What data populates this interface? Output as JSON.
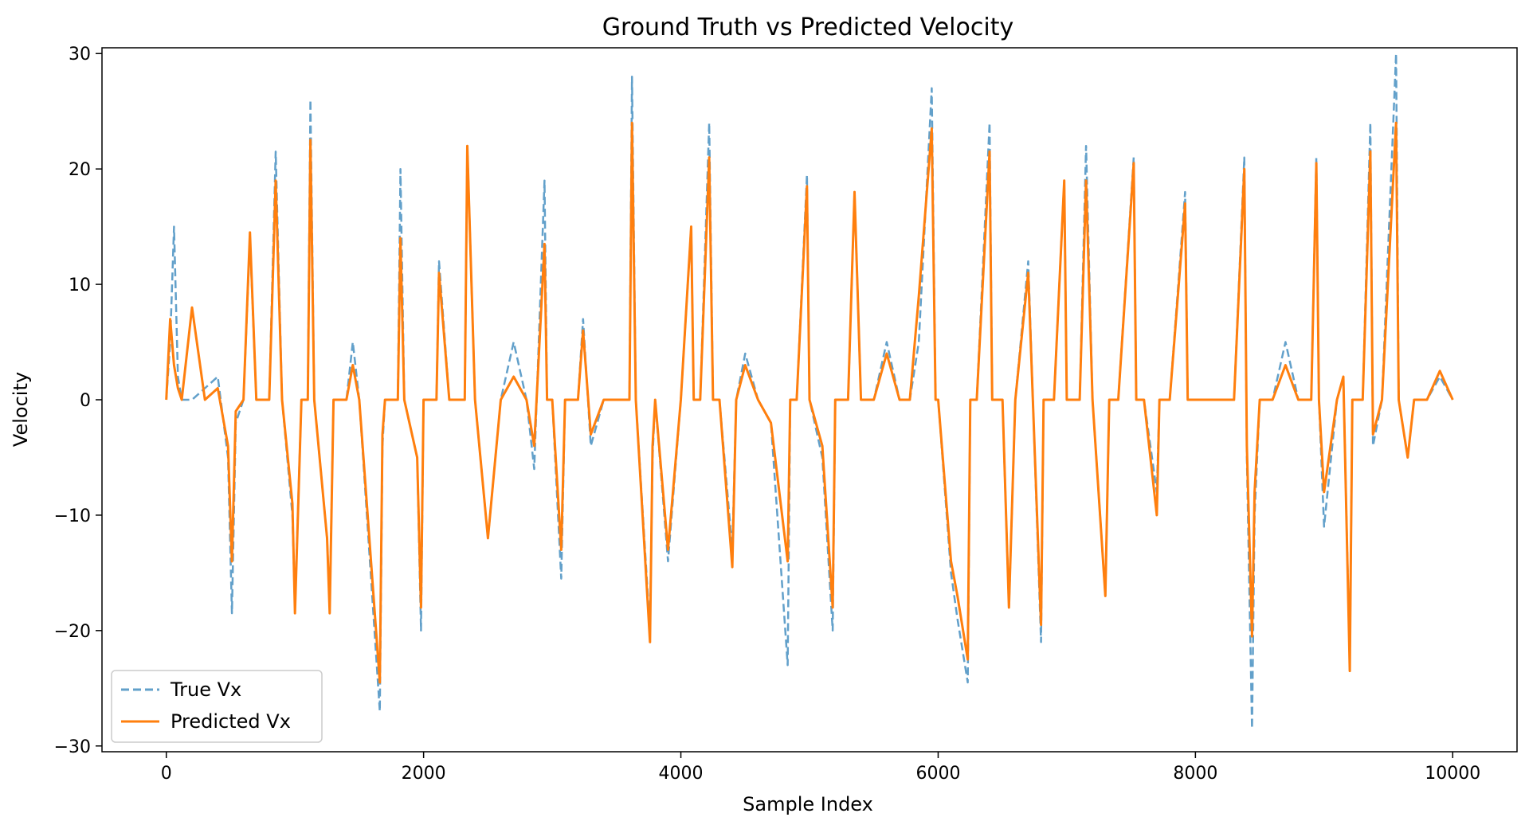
{
  "chart_data": {
    "type": "line",
    "title": "Ground Truth vs Predicted Velocity",
    "xlabel": "Sample Index",
    "ylabel": "Velocity",
    "xlim": [
      -500,
      10500
    ],
    "ylim": [
      -30.5,
      30.5
    ],
    "x_ticks": [
      0,
      2000,
      4000,
      6000,
      8000,
      10000
    ],
    "y_ticks": [
      -30,
      -20,
      -10,
      0,
      10,
      20,
      30
    ],
    "x_tick_labels": [
      "0",
      "2000",
      "4000",
      "6000",
      "8000",
      "10000"
    ],
    "y_tick_labels": [
      "−30",
      "−20",
      "−10",
      "0",
      "10",
      "20",
      "30"
    ],
    "legend_position": "lower-left",
    "grid": false,
    "series": [
      {
        "name": "True Vx",
        "color": "#1f77b4",
        "style": "dashed",
        "x": [
          0,
          30,
          60,
          90,
          120,
          200,
          300,
          400,
          480,
          510,
          540,
          600,
          650,
          700,
          800,
          850,
          900,
          980,
          1000,
          1050,
          1100,
          1120,
          1150,
          1250,
          1270,
          1300,
          1400,
          1450,
          1500,
          1660,
          1680,
          1700,
          1800,
          1820,
          1850,
          1950,
          1980,
          2000,
          2100,
          2120,
          2200,
          2320,
          2340,
          2400,
          2500,
          2600,
          2700,
          2800,
          2860,
          2940,
          2960,
          3000,
          3070,
          3100,
          3200,
          3240,
          3300,
          3400,
          3500,
          3600,
          3620,
          3650,
          3760,
          3780,
          3800,
          3900,
          4000,
          4080,
          4100,
          4150,
          4220,
          4250,
          4300,
          4400,
          4430,
          4500,
          4600,
          4700,
          4830,
          4850,
          4900,
          4980,
          5000,
          5100,
          5180,
          5200,
          5300,
          5350,
          5400,
          5500,
          5600,
          5700,
          5780,
          5850,
          5950,
          5980,
          6000,
          6100,
          6150,
          6230,
          6250,
          6300,
          6400,
          6420,
          6500,
          6550,
          6600,
          6700,
          6800,
          6820,
          6900,
          6980,
          7000,
          7100,
          7150,
          7200,
          7300,
          7330,
          7400,
          7520,
          7540,
          7600,
          7700,
          7720,
          7800,
          7920,
          7940,
          8000,
          8100,
          8200,
          8300,
          8380,
          8400,
          8440,
          8460,
          8500,
          8600,
          8700,
          8800,
          8900,
          8940,
          8960,
          9000,
          9100,
          9150,
          9200,
          9220,
          9300,
          9360,
          9380,
          9450,
          9560,
          9580,
          9650,
          9700,
          9800,
          9900,
          10000
        ],
        "y": [
          0,
          5,
          15,
          2,
          0,
          0,
          1,
          2,
          -5,
          -18.5,
          -2,
          0,
          14,
          0,
          0,
          21.5,
          0,
          -10,
          -18,
          0,
          0,
          26,
          0,
          -12,
          -18,
          0,
          0,
          5,
          0,
          -27,
          -4,
          0,
          0,
          20,
          0,
          -5,
          -20,
          0,
          0,
          12,
          0,
          0,
          22,
          0,
          -12,
          0,
          5,
          0,
          -6,
          19,
          0,
          0,
          -15.5,
          0,
          0,
          7,
          -4,
          0,
          0,
          0,
          28,
          0,
          -20,
          -5,
          0,
          -14,
          0,
          15,
          0,
          0,
          24,
          0,
          0,
          -13,
          0,
          4,
          0,
          -2,
          -23,
          0,
          0,
          19.5,
          0,
          -5,
          -20,
          0,
          0,
          18,
          0,
          0,
          5,
          0,
          0,
          5,
          27,
          0,
          0,
          -15,
          -19,
          -24.5,
          0,
          0,
          24,
          0,
          0,
          -18,
          0,
          12,
          -21,
          0,
          0,
          19,
          0,
          0,
          22,
          0,
          -17,
          0,
          0,
          21,
          0,
          0,
          -8,
          0,
          0,
          18,
          0,
          0,
          0,
          0,
          0,
          21,
          -5,
          -28.5,
          -10,
          0,
          0,
          5,
          0,
          0,
          21,
          0,
          -11,
          0,
          2,
          -23,
          0,
          0,
          24,
          -4,
          0,
          30,
          0,
          -5,
          0,
          0,
          2,
          0
        ]
      },
      {
        "name": "Predicted Vx",
        "color": "#ff7f0e",
        "style": "solid",
        "x": [
          0,
          30,
          60,
          90,
          120,
          200,
          300,
          400,
          480,
          510,
          540,
          600,
          650,
          700,
          800,
          850,
          900,
          980,
          1000,
          1050,
          1100,
          1120,
          1150,
          1250,
          1270,
          1300,
          1400,
          1450,
          1500,
          1660,
          1680,
          1700,
          1800,
          1820,
          1850,
          1950,
          1980,
          2000,
          2100,
          2120,
          2200,
          2320,
          2340,
          2400,
          2500,
          2600,
          2700,
          2800,
          2860,
          2940,
          2960,
          3000,
          3070,
          3100,
          3200,
          3240,
          3300,
          3400,
          3500,
          3600,
          3620,
          3650,
          3760,
          3780,
          3800,
          3900,
          4000,
          4080,
          4100,
          4150,
          4220,
          4250,
          4300,
          4400,
          4430,
          4500,
          4600,
          4700,
          4830,
          4850,
          4900,
          4980,
          5000,
          5100,
          5180,
          5200,
          5300,
          5350,
          5400,
          5500,
          5600,
          5700,
          5780,
          5850,
          5950,
          5980,
          6000,
          6100,
          6150,
          6230,
          6250,
          6300,
          6400,
          6420,
          6500,
          6550,
          6600,
          6700,
          6800,
          6820,
          6900,
          6980,
          7000,
          7100,
          7150,
          7200,
          7300,
          7330,
          7400,
          7520,
          7540,
          7600,
          7700,
          7720,
          7800,
          7920,
          7940,
          8000,
          8100,
          8200,
          8300,
          8380,
          8400,
          8440,
          8460,
          8500,
          8600,
          8700,
          8800,
          8900,
          8940,
          8960,
          9000,
          9100,
          9150,
          9200,
          9220,
          9300,
          9360,
          9380,
          9450,
          9560,
          9580,
          9650,
          9700,
          9800,
          9900,
          10000
        ],
        "y": [
          0,
          7,
          3,
          1,
          0,
          8,
          0,
          1,
          -4,
          -14,
          -1,
          0,
          14.5,
          0,
          0,
          19,
          0,
          -9,
          -18.5,
          0,
          0,
          22.5,
          0,
          -12,
          -18.5,
          0,
          0,
          3,
          0,
          -24.5,
          -3,
          0,
          0,
          14,
          0,
          -5,
          -18,
          0,
          0,
          11,
          0,
          0,
          22,
          0,
          -12,
          0,
          2,
          0,
          -4,
          13.5,
          0,
          0,
          -13,
          0,
          0,
          6,
          -3,
          0,
          0,
          0,
          24,
          0,
          -21,
          -4,
          0,
          -13,
          0,
          15,
          0,
          0,
          21,
          0,
          0,
          -14.5,
          0,
          3,
          0,
          -2,
          -14,
          0,
          0,
          18.5,
          0,
          -4,
          -18,
          0,
          0,
          18,
          0,
          0,
          4,
          0,
          0,
          9,
          23.5,
          0,
          0,
          -14,
          -17,
          -22.5,
          0,
          0,
          21.5,
          0,
          0,
          -18,
          0,
          11,
          -19.5,
          0,
          0,
          19,
          0,
          0,
          19,
          0,
          -17,
          0,
          0,
          20.5,
          0,
          0,
          -10,
          0,
          0,
          17,
          0,
          0,
          0,
          0,
          0,
          20,
          -4,
          -20.5,
          -8,
          0,
          0,
          3,
          0,
          0,
          20.5,
          0,
          -8,
          0,
          2,
          -23.5,
          0,
          0,
          21.5,
          -3,
          0,
          24,
          0,
          -5,
          0,
          0,
          2.5,
          0
        ]
      }
    ]
  }
}
